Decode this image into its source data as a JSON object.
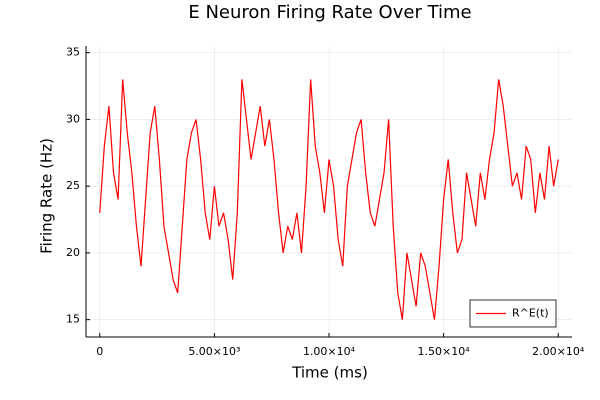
{
  "chart_data": {
    "type": "line",
    "title": "E Neuron Firing Rate Over Time",
    "x_label": "Time (ms)",
    "y_label": "Firing Rate (Hz)",
    "xlim": [
      -600,
      20600
    ],
    "ylim": [
      13.7,
      35.5
    ],
    "xticks": [
      0,
      {
        "value": 5000,
        "label": "5.00×10³"
      },
      {
        "value": 10000,
        "label": "1.00×10⁴"
      },
      {
        "value": 15000,
        "label": "1.50×10⁴"
      },
      {
        "value": 20000,
        "label": "2.00×10⁴"
      }
    ],
    "yticks": [
      15,
      20,
      25,
      30,
      35
    ],
    "grid": true,
    "legend_position": "bottom-right",
    "x": [
      0,
      200,
      400,
      600,
      800,
      1000,
      1200,
      1400,
      1600,
      1800,
      2000,
      2200,
      2400,
      2600,
      2800,
      3000,
      3200,
      3400,
      3600,
      3800,
      4000,
      4200,
      4400,
      4600,
      4800,
      5000,
      5200,
      5400,
      5600,
      5800,
      6000,
      6200,
      6400,
      6600,
      6800,
      7000,
      7200,
      7400,
      7600,
      7800,
      8000,
      8200,
      8400,
      8600,
      8800,
      9000,
      9200,
      9400,
      9600,
      9800,
      10000,
      10200,
      10400,
      10600,
      10800,
      11000,
      11200,
      11400,
      11600,
      11800,
      12000,
      12200,
      12400,
      12600,
      12800,
      13000,
      13200,
      13400,
      13600,
      13800,
      14000,
      14200,
      14400,
      14600,
      14800,
      15000,
      15200,
      15400,
      15600,
      15800,
      16000,
      16200,
      16400,
      16600,
      16800,
      17000,
      17200,
      17400,
      17600,
      17800,
      18000,
      18200,
      18400,
      18600,
      18800,
      19000,
      19200,
      19400,
      19600,
      19800,
      20000
    ],
    "series": [
      {
        "name": "R^E(t)",
        "color": "#ff0000",
        "values": [
          23,
          28,
          31,
          26,
          24,
          33,
          29,
          26,
          22,
          19,
          24,
          29,
          31,
          27,
          22,
          20,
          18,
          17,
          22,
          27,
          29,
          30,
          27,
          23,
          21,
          25,
          22,
          23,
          21,
          18,
          23,
          33,
          30,
          27,
          29,
          31,
          28,
          30,
          27,
          23,
          20,
          22,
          21,
          23,
          20,
          25,
          33,
          28,
          26,
          23,
          27,
          25,
          21,
          19,
          25,
          27,
          29,
          30,
          26,
          23,
          22,
          24,
          26,
          30,
          22,
          17,
          15,
          20,
          18,
          16,
          20,
          19,
          17,
          15,
          19,
          24,
          27,
          23,
          20,
          21,
          26,
          24,
          22,
          26,
          24,
          27,
          29,
          33,
          31,
          28,
          25,
          26,
          24,
          28,
          27,
          23,
          26,
          24,
          28,
          25,
          27
        ]
      }
    ]
  }
}
